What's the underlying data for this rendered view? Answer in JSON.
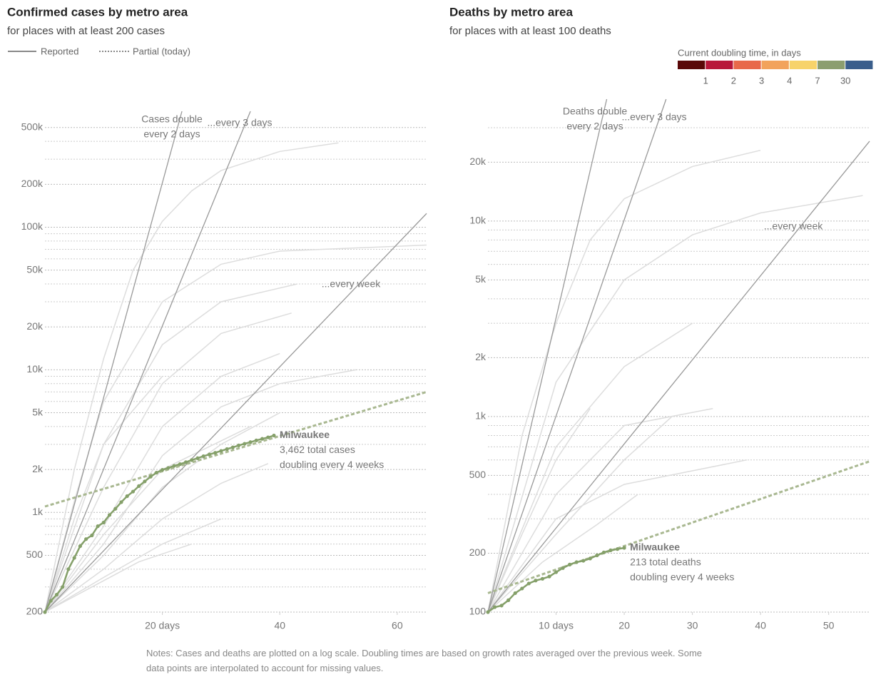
{
  "legend": {
    "entries": [
      "Reported",
      "Partial (today)"
    ]
  },
  "color_legend": {
    "title": "Current doubling time, in days",
    "colors": [
      "#5a0808",
      "#b8173a",
      "#e8694a",
      "#f2a35c",
      "#f7d36a",
      "#8c9e6f",
      "#3a5e8c"
    ],
    "labels": [
      1,
      2,
      3,
      4,
      7,
      30
    ]
  },
  "notes": "Notes: Cases and deaths are plotted on a log scale. Doubling times are based on growth rates averaged over the previous week. Some data points are interpolated to account for missing values.",
  "chart_data": [
    {
      "type": "line",
      "title": "Confirmed cases by metro area",
      "subtitle": "for places with at least 200 cases",
      "log_scale": "y",
      "grid": true,
      "xlim": [
        0,
        65
      ],
      "xticks": [
        {
          "value": 20,
          "label": "20 days"
        },
        40,
        60
      ],
      "ylim": [
        200,
        650000
      ],
      "yticks": [
        200,
        500,
        {
          "value": 1000,
          "label": "1k"
        },
        {
          "value": 2000,
          "label": "2k"
        },
        {
          "value": 5000,
          "label": "5k"
        },
        {
          "value": 10000,
          "label": "10k"
        },
        {
          "value": 20000,
          "label": "20k"
        },
        {
          "value": 50000,
          "label": "50k"
        },
        {
          "value": 100000,
          "label": "100k"
        },
        {
          "value": 200000,
          "label": "200k"
        },
        {
          "value": 500000,
          "label": "500k"
        }
      ],
      "minor_yticks": [
        300,
        400,
        600,
        700,
        800,
        900,
        3000,
        4000,
        6000,
        7000,
        8000,
        9000,
        30000,
        40000,
        60000,
        70000,
        80000,
        90000,
        300000,
        400000
      ],
      "reference_lines": [
        {
          "label_lines": [
            "Cases double",
            "every 2 days"
          ],
          "doubling_days": 2
        },
        {
          "label_lines": [
            "...every 3 days"
          ],
          "doubling_days": 3
        },
        {
          "label_lines": [
            "...every week"
          ],
          "doubling_days": 7
        }
      ],
      "background": {
        "color": "#dddddd",
        "lines": [
          {
            "x": [
              0,
              5,
              10,
              15,
              20,
              25,
              30,
              40,
              50
            ],
            "values": [
              200,
              2000,
              12000,
              50000,
              110000,
              180000,
              250000,
              340000,
              390000
            ]
          },
          {
            "x": [
              0,
              5,
              10,
              20,
              30,
              40,
              65
            ],
            "values": [
              200,
              1200,
              6000,
              30000,
              55000,
              68000,
              75000
            ]
          },
          {
            "x": [
              0,
              10,
              20,
              30,
              43
            ],
            "values": [
              200,
              3000,
              15000,
              30000,
              40000
            ]
          },
          {
            "x": [
              0,
              10,
              20,
              30,
              42
            ],
            "values": [
              200,
              1500,
              8000,
              18000,
              25000
            ]
          },
          {
            "x": [
              0,
              10,
              20,
              30,
              40
            ],
            "values": [
              200,
              800,
              4000,
              9000,
              13000
            ]
          },
          {
            "x": [
              0,
              10,
              20,
              30,
              40,
              53
            ],
            "values": [
              200,
              600,
              2500,
              5500,
              8000,
              10000
            ]
          },
          {
            "x": [
              0,
              10,
              20,
              30,
              40
            ],
            "values": [
              200,
              500,
              1500,
              3000,
              5000
            ]
          },
          {
            "x": [
              0,
              10,
              20,
              30,
              38
            ],
            "values": [
              200,
              400,
              900,
              1600,
              2200
            ]
          },
          {
            "x": [
              0,
              10,
              20,
              30
            ],
            "values": [
              200,
              350,
              600,
              900
            ]
          },
          {
            "x": [
              0,
              8,
              16,
              25
            ],
            "values": [
              200,
              300,
              450,
              600
            ]
          },
          {
            "x": [
              0,
              5,
              10,
              20
            ],
            "values": [
              200,
              900,
              3000,
              9000
            ]
          },
          {
            "x": [
              0,
              10,
              20,
              35
            ],
            "values": [
              200,
              700,
              2000,
              4000
            ]
          }
        ]
      },
      "trend": {
        "color": "#a9b891",
        "x": [
          0,
          65
        ],
        "values": [
          1100,
          7000
        ]
      },
      "series": [
        {
          "name": "Milwaukee",
          "color": "#85a06a",
          "x": [
            0,
            1,
            2,
            3,
            4,
            5,
            6,
            7,
            8,
            9,
            10,
            11,
            12,
            13,
            14,
            15,
            16,
            17,
            18,
            19,
            20,
            21,
            22,
            23,
            24,
            25,
            26,
            27,
            28,
            29,
            30,
            31,
            32,
            33,
            34,
            35,
            36,
            37,
            38,
            39
          ],
          "values": [
            200,
            240,
            265,
            300,
            400,
            480,
            580,
            650,
            690,
            800,
            850,
            960,
            1060,
            1180,
            1300,
            1400,
            1530,
            1650,
            1780,
            1900,
            1990,
            2050,
            2120,
            2180,
            2250,
            2330,
            2400,
            2480,
            2550,
            2620,
            2700,
            2780,
            2860,
            2950,
            3030,
            3110,
            3200,
            3280,
            3360,
            3462
          ]
        }
      ],
      "annotation": {
        "lines": [
          "3,462 total cases",
          "doubling every 4 weeks"
        ]
      }
    },
    {
      "type": "line",
      "title": "Deaths by metro area",
      "subtitle": "for places with at least 100 deaths",
      "log_scale": "y",
      "grid": true,
      "xlim": [
        0,
        56
      ],
      "xticks": [
        {
          "value": 10,
          "label": "10 days"
        },
        20,
        30,
        40,
        50
      ],
      "ylim": [
        100,
        42000
      ],
      "yticks": [
        100,
        200,
        500,
        {
          "value": 1000,
          "label": "1k"
        },
        {
          "value": 2000,
          "label": "2k"
        },
        {
          "value": 5000,
          "label": "5k"
        },
        {
          "value": 10000,
          "label": "10k"
        },
        {
          "value": 20000,
          "label": "20k"
        }
      ],
      "minor_yticks": [
        300,
        400,
        600,
        700,
        800,
        900,
        3000,
        4000,
        6000,
        7000,
        8000,
        9000,
        30000
      ],
      "reference_lines": [
        {
          "label_lines": [
            "Deaths double",
            "every 2 days"
          ],
          "doubling_days": 2
        },
        {
          "label_lines": [
            "...every 3 days"
          ],
          "doubling_days": 3
        },
        {
          "label_lines": [
            "...every week"
          ],
          "doubling_days": 7
        }
      ],
      "background": {
        "color": "#dddddd",
        "lines": [
          {
            "x": [
              0,
              5,
              10,
              15,
              20,
              30,
              40
            ],
            "values": [
              100,
              800,
              3000,
              8000,
              13000,
              19000,
              23000
            ]
          },
          {
            "x": [
              0,
              10,
              20,
              30,
              40,
              55
            ],
            "values": [
              100,
              1500,
              5000,
              8500,
              11000,
              13500
            ]
          },
          {
            "x": [
              0,
              10,
              20,
              30
            ],
            "values": [
              100,
              700,
              1800,
              3000
            ]
          },
          {
            "x": [
              0,
              10,
              20,
              33
            ],
            "values": [
              100,
              400,
              900,
              1100
            ]
          },
          {
            "x": [
              0,
              10,
              20,
              38
            ],
            "values": [
              100,
              300,
              450,
              600
            ]
          },
          {
            "x": [
              0,
              10,
              20,
              27
            ],
            "values": [
              100,
              250,
              600,
              1000
            ]
          },
          {
            "x": [
              0,
              8,
              16,
              22
            ],
            "values": [
              100,
              180,
              280,
              400
            ]
          },
          {
            "x": [
              0,
              5,
              10,
              15
            ],
            "values": [
              100,
              250,
              600,
              1100
            ]
          }
        ]
      },
      "trend": {
        "color": "#a9b891",
        "x": [
          0,
          56
        ],
        "values": [
          125,
          590
        ]
      },
      "series": [
        {
          "name": "Milwaukee",
          "color": "#85a06a",
          "x": [
            0,
            1,
            2,
            3,
            4,
            5,
            6,
            7,
            8,
            9,
            10,
            11,
            12,
            13,
            14,
            15,
            16,
            17,
            18,
            19,
            20
          ],
          "values": [
            100,
            106,
            108,
            115,
            125,
            132,
            140,
            145,
            148,
            152,
            160,
            168,
            175,
            180,
            183,
            188,
            195,
            202,
            207,
            210,
            213
          ]
        }
      ],
      "annotation": {
        "lines": [
          "213 total deaths",
          "doubling every 4 weeks"
        ]
      }
    }
  ]
}
